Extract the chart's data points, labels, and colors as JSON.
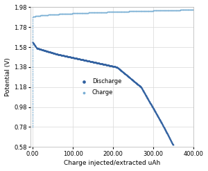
{
  "title": "",
  "xlabel": "Charge injected/extracted uAh",
  "ylabel": "Potential (V)",
  "xlim": [
    -5,
    400
  ],
  "ylim": [
    0.58,
    1.98
  ],
  "xticks": [
    0,
    100,
    200,
    300,
    400
  ],
  "yticks": [
    0.58,
    0.78,
    0.98,
    1.18,
    1.38,
    1.58,
    1.78,
    1.98
  ],
  "discharge_color": "#3060a0",
  "charge_color": "#7aafd4",
  "legend_discharge": "Discharge",
  "legend_charge": "Charge",
  "background_color": "#ffffff",
  "grid_color": "#d8d8d8"
}
